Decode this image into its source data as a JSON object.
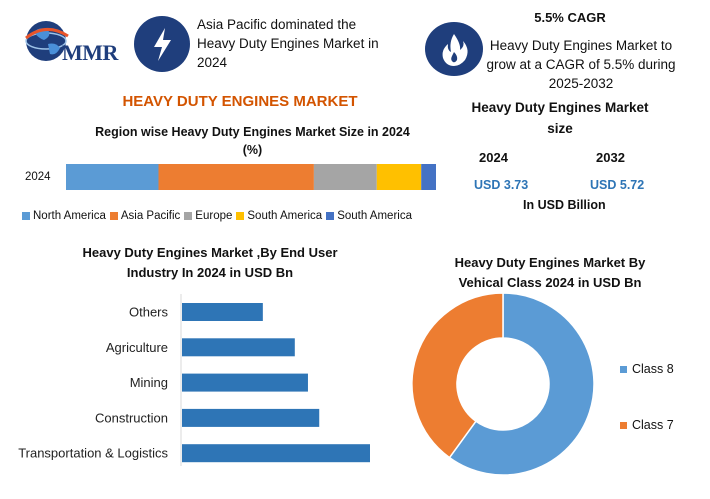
{
  "logo": {
    "text": "MMR"
  },
  "highlight1": {
    "icon": "lightning-icon",
    "line1": "Asia Pacific dominated the",
    "line2": "Heavy Duty Engines Market in",
    "line3": "2024"
  },
  "highlight2": {
    "icon": "flame-icon",
    "title": "5.5% CAGR",
    "line1": "Heavy Duty Engines Market to",
    "line2": "grow at a CAGR of 5.5% during",
    "line3": "2025-2032"
  },
  "main_title": "HEAVY DUTY ENGINES MARKET",
  "market_size": {
    "title_line1": "Heavy Duty Engines Market",
    "title_line2": "size",
    "year1": "2024",
    "year2": "2032",
    "value1": "USD 3.73",
    "value2": "USD 5.72",
    "unit": "In USD Billion"
  },
  "colors": {
    "brand": "#1f3e7c",
    "accent": "#d35400",
    "blue": "#5b9bd5",
    "orange": "#ed7d31",
    "gray": "#a5a5a5",
    "yellow": "#ffc000",
    "darkblue": "#4472c4",
    "bar": "#2e75b6"
  },
  "chart_data": [
    {
      "type": "bar",
      "orientation": "horizontal-stacked",
      "title": "Region wise Heavy Duty Engines Market Size in 2024 (%)",
      "title_line1": "Region wise Heavy Duty Engines Market Size in 2024",
      "title_line2": "(%)",
      "categories": [
        "2024"
      ],
      "series": [
        {
          "name": "North America",
          "values": [
            25
          ],
          "color": "#5b9bd5"
        },
        {
          "name": "Asia Pacific",
          "values": [
            42
          ],
          "color": "#ed7d31"
        },
        {
          "name": "Europe",
          "values": [
            17
          ],
          "color": "#a5a5a5"
        },
        {
          "name": "South America",
          "values": [
            12
          ],
          "color": "#ffc000"
        },
        {
          "name": "South America",
          "values": [
            4
          ],
          "color": "#4472c4"
        }
      ],
      "legend_position": "bottom",
      "grid": false
    },
    {
      "type": "bar",
      "orientation": "horizontal",
      "title": "Heavy Duty Engines Market ,By End User Industry In 2024 in USD Bn",
      "title_line1": "Heavy Duty Engines Market ,By End User",
      "title_line2": "Industry In 2024 in USD Bn",
      "categories": [
        "Others",
        "Agriculture",
        "Mining",
        "Construction",
        "Transportation & Logistics"
      ],
      "values": [
        0.43,
        0.6,
        0.67,
        0.73,
        1.0
      ],
      "grid": false
    },
    {
      "type": "pie",
      "subtype": "donut",
      "title": "Heavy Duty Engines Market By Vehical Class 2024 in USD Bn",
      "title_line1": "Heavy Duty Engines Market By",
      "title_line2": "Vehical Class 2024 in USD Bn",
      "labels": [
        "Class 8",
        "Class 7"
      ],
      "values": [
        60,
        40
      ],
      "colors": [
        "#5b9bd5",
        "#ed7d31"
      ],
      "legend_position": "right"
    }
  ]
}
